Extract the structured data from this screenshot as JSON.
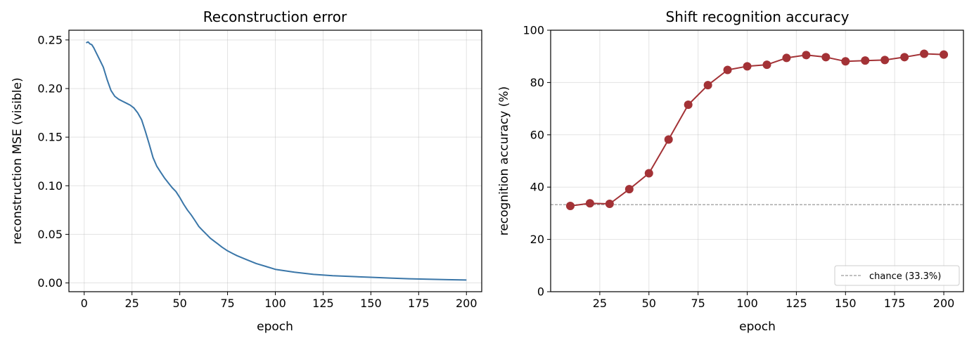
{
  "chart_data": [
    {
      "type": "line",
      "title": "Reconstruction error",
      "xlabel": "epoch",
      "ylabel": "reconstruction MSE (visible)",
      "xlim": [
        -8,
        208
      ],
      "ylim": [
        -0.009,
        0.26
      ],
      "xticks": [
        "0",
        "25",
        "50",
        "75",
        "100",
        "125",
        "150",
        "175",
        "200"
      ],
      "yticks": [
        "0.00",
        "0.05",
        "0.10",
        "0.15",
        "0.20",
        "0.25"
      ],
      "grid": true,
      "color": "#3a76a8",
      "series": [
        {
          "x": [
            1,
            2,
            3,
            4,
            5,
            6,
            8,
            10,
            12,
            14,
            16,
            18,
            20,
            22,
            24,
            26,
            28,
            30,
            32,
            34,
            36,
            38,
            40,
            42,
            44,
            46,
            48,
            50,
            52,
            54,
            56,
            58,
            60,
            62,
            64,
            66,
            68,
            70,
            72,
            75,
            78,
            80,
            85,
            90,
            95,
            100,
            110,
            120,
            130,
            140,
            150,
            160,
            170,
            180,
            190,
            200
          ],
          "y": [
            0.247,
            0.248,
            0.246,
            0.245,
            0.242,
            0.238,
            0.23,
            0.222,
            0.209,
            0.198,
            0.192,
            0.189,
            0.187,
            0.185,
            0.183,
            0.18,
            0.175,
            0.168,
            0.156,
            0.143,
            0.129,
            0.12,
            0.114,
            0.108,
            0.103,
            0.098,
            0.094,
            0.088,
            0.081,
            0.075,
            0.07,
            0.064,
            0.058,
            0.054,
            0.05,
            0.046,
            0.043,
            0.04,
            0.037,
            0.033,
            0.03,
            0.028,
            0.024,
            0.02,
            0.017,
            0.014,
            0.011,
            0.0088,
            0.0075,
            0.0066,
            0.0058,
            0.005,
            0.0043,
            0.0038,
            0.0034,
            0.003
          ]
        }
      ]
    },
    {
      "type": "line",
      "title": "Shift recognition accuracy",
      "xlabel": "epoch",
      "ylabel": "recognition accuracy (%)",
      "xlim": [
        0,
        210
      ],
      "ylim": [
        0,
        100
      ],
      "xticks": [
        "25",
        "50",
        "75",
        "100",
        "125",
        "150",
        "175",
        "200"
      ],
      "yticks": [
        "0",
        "20",
        "40",
        "60",
        "80",
        "100"
      ],
      "grid": true,
      "color": "#a33236",
      "series": [
        {
          "x": [
            10,
            20,
            30,
            40,
            50,
            60,
            70,
            80,
            90,
            100,
            110,
            120,
            130,
            140,
            150,
            160,
            170,
            180,
            190,
            200
          ],
          "y": [
            32.8,
            33.8,
            33.6,
            39.2,
            45.3,
            58.2,
            71.5,
            79.0,
            84.8,
            86.2,
            86.8,
            89.4,
            90.5,
            89.7,
            88.1,
            88.4,
            88.6,
            89.7,
            91.0,
            90.7
          ]
        }
      ],
      "reference_line": {
        "y": 33.3,
        "label": "chance (33.3%)",
        "color": "#808080"
      },
      "legend_position": "lower-right"
    }
  ]
}
